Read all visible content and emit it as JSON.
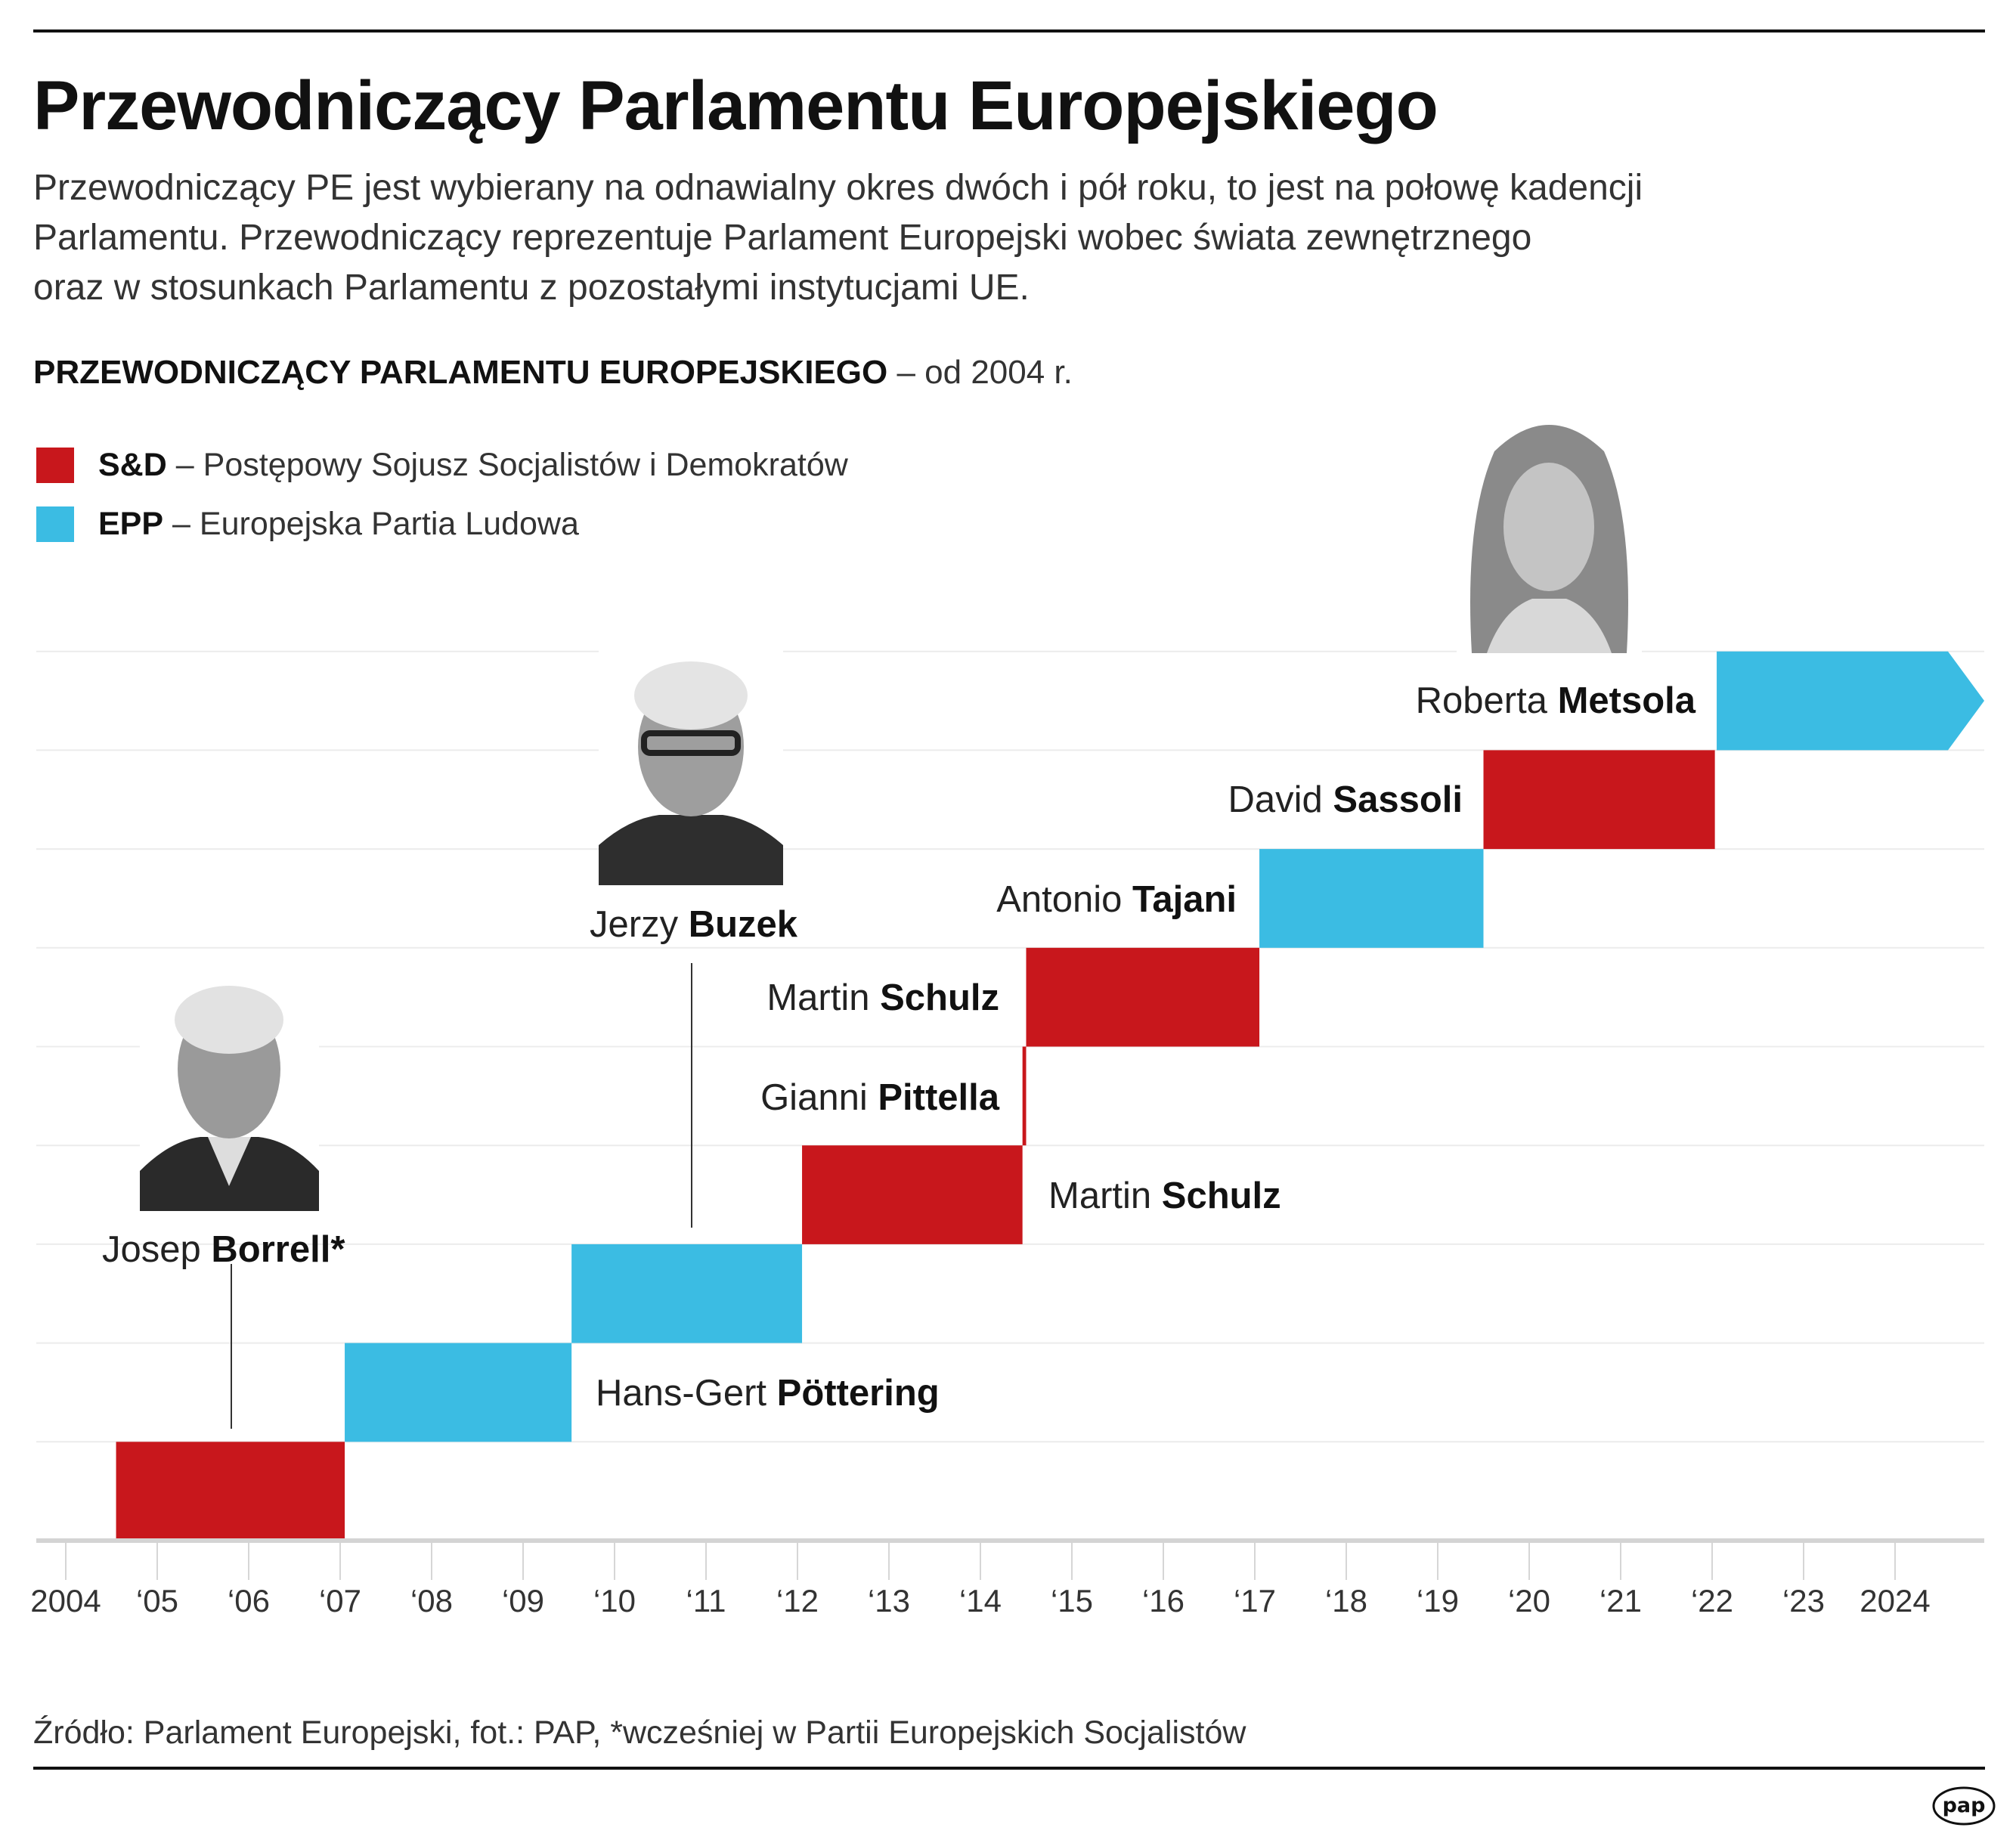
{
  "title": "Przewodniczący Parlamentu Europejskiego",
  "subtitle": [
    "Przewodniczący PE jest wybierany na odnawialny okres dwóch i pół roku, to jest na połowę kadencji",
    "Parlamentu. Przewodniczący reprezentuje Parlament Europejski wobec świata zewnętrznego",
    "oraz w stosunkach Parlamentu z pozostałymi instytucjami UE."
  ],
  "section": {
    "bold": "PRZEWODNICZĄCY PARLAMENTU EUROPEJSKIEGO",
    "rest": " – od 2004 r."
  },
  "legend": [
    {
      "abbr": "S&D",
      "label": "– Postępowy Sojusz Socjalistów i Demokratów",
      "color": "#c8171c"
    },
    {
      "abbr": "EPP",
      "label": "– Europejska Partia Ludowa",
      "color": "#3bbce3"
    }
  ],
  "chart_data": {
    "type": "bar",
    "subtype": "timeline-gantt",
    "x_unit": "year",
    "xlim": [
      2003.7,
      2024.98
    ],
    "x_ticks": [
      2004,
      2005,
      2006,
      2007,
      2008,
      2009,
      2010,
      2011,
      2012,
      2013,
      2014,
      2015,
      2016,
      2017,
      2018,
      2019,
      2020,
      2021,
      2022,
      2023,
      2024
    ],
    "x_tick_labels": [
      "2004",
      "‘05",
      "‘06",
      "‘07",
      "‘08",
      "‘09",
      "‘10",
      "‘11",
      "‘12",
      "‘13",
      "‘14",
      "‘15",
      "‘16",
      "‘17",
      "‘18",
      "‘19",
      "‘20",
      "‘21",
      "‘22",
      "‘23",
      "2024"
    ],
    "grid": true,
    "bars": [
      {
        "first": "Josep",
        "last": "Borrell*",
        "group": "S&D",
        "start": 2004.55,
        "end": 2007.05,
        "row": 0
      },
      {
        "first": "Hans-Gert",
        "last": "Pöttering",
        "group": "EPP",
        "start": 2007.05,
        "end": 2009.53,
        "row": 1
      },
      {
        "first": "Jerzy",
        "last": "Buzek",
        "group": "EPP",
        "start": 2009.53,
        "end": 2012.05,
        "row": 2
      },
      {
        "first": "Martin",
        "last": "Schulz",
        "group": "S&D",
        "start": 2012.05,
        "end": 2014.46,
        "row": 3
      },
      {
        "first": "Gianni",
        "last": "Pittella",
        "group": "S&D",
        "start": 2014.46,
        "end": 2014.5,
        "row": 4
      },
      {
        "first": "Martin",
        "last": "Schulz",
        "group": "S&D",
        "start": 2014.5,
        "end": 2017.05,
        "row": 5
      },
      {
        "first": "Antonio",
        "last": "Tajani",
        "group": "EPP",
        "start": 2017.05,
        "end": 2019.5,
        "row": 6
      },
      {
        "first": "David",
        "last": "Sassoli",
        "group": "S&D",
        "start": 2019.5,
        "end": 2022.03,
        "row": 7
      },
      {
        "first": "Roberta",
        "last": "Metsola",
        "group": "EPP",
        "start": 2022.05,
        "end": null,
        "ongoing": true,
        "row": 8
      }
    ],
    "colors": {
      "S&D": "#c8171c",
      "EPP": "#3bbce3"
    }
  },
  "source": "Źródło: Parlament Europejski, fot.: PAP, *wcześniej w Partii Europejskich Socjalistów",
  "logo": "pap"
}
